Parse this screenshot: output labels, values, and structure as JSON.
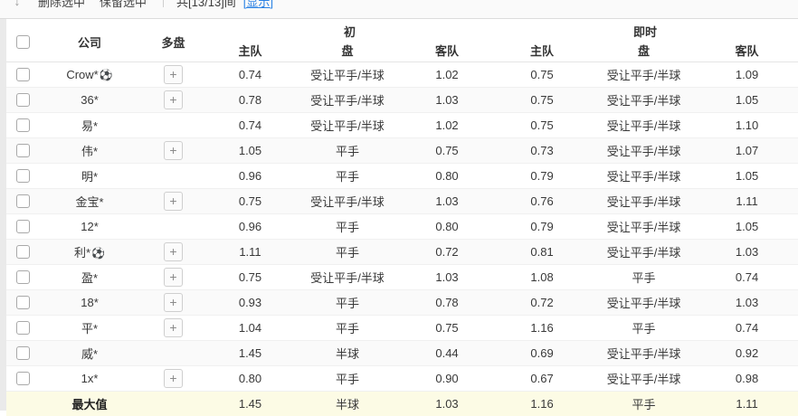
{
  "toolbar": {
    "sort_icon": "↓",
    "delete_selected": "删除选中",
    "keep_selected": "保留选中",
    "count_text": "共[13/13]间",
    "show_link": "[显示]"
  },
  "table": {
    "headers": {
      "company": "公司",
      "multi": "多盘",
      "group_initial": "初",
      "group_live": "即时",
      "home": "主队",
      "handicap": "盘",
      "away": "客队"
    },
    "rows": [
      {
        "name": "Crow*",
        "ball": true,
        "plus": true,
        "init": {
          "home": "0.74",
          "handicap": "受让平手/半球",
          "away": "1.02"
        },
        "live": {
          "home": "0.75",
          "handicap": "受让平手/半球",
          "away": "1.09"
        }
      },
      {
        "name": "36*",
        "ball": false,
        "plus": true,
        "init": {
          "home": "0.78",
          "handicap": "受让平手/半球",
          "away": "1.03"
        },
        "live": {
          "home": "0.75",
          "handicap": "受让平手/半球",
          "away": "1.05"
        }
      },
      {
        "name": "易*",
        "ball": false,
        "plus": false,
        "init": {
          "home": "0.74",
          "handicap": "受让平手/半球",
          "away": "1.02"
        },
        "live": {
          "home": "0.75",
          "handicap": "受让平手/半球",
          "away": "1.10"
        }
      },
      {
        "name": "伟*",
        "ball": false,
        "plus": true,
        "init": {
          "home": "1.05",
          "handicap": "平手",
          "away": "0.75"
        },
        "live": {
          "home": "0.73",
          "handicap": "受让平手/半球",
          "away": "1.07"
        }
      },
      {
        "name": "明*",
        "ball": false,
        "plus": false,
        "init": {
          "home": "0.96",
          "handicap": "平手",
          "away": "0.80"
        },
        "live": {
          "home": "0.79",
          "handicap": "受让平手/半球",
          "away": "1.05"
        }
      },
      {
        "name": "金宝*",
        "ball": false,
        "plus": true,
        "init": {
          "home": "0.75",
          "handicap": "受让平手/半球",
          "away": "1.03"
        },
        "live": {
          "home": "0.76",
          "handicap": "受让平手/半球",
          "away": "1.11"
        }
      },
      {
        "name": "12*",
        "ball": false,
        "plus": false,
        "init": {
          "home": "0.96",
          "handicap": "平手",
          "away": "0.80"
        },
        "live": {
          "home": "0.79",
          "handicap": "受让平手/半球",
          "away": "1.05"
        }
      },
      {
        "name": "利*",
        "ball": true,
        "plus": true,
        "init": {
          "home": "1.11",
          "handicap": "平手",
          "away": "0.72"
        },
        "live": {
          "home": "0.81",
          "handicap": "受让平手/半球",
          "away": "1.03"
        }
      },
      {
        "name": "盈*",
        "ball": false,
        "plus": true,
        "init": {
          "home": "0.75",
          "handicap": "受让平手/半球",
          "away": "1.03"
        },
        "live": {
          "home": "1.08",
          "handicap": "平手",
          "away": "0.74"
        }
      },
      {
        "name": "18*",
        "ball": false,
        "plus": true,
        "init": {
          "home": "0.93",
          "handicap": "平手",
          "away": "0.78"
        },
        "live": {
          "home": "0.72",
          "handicap": "受让平手/半球",
          "away": "1.03"
        }
      },
      {
        "name": "平*",
        "ball": false,
        "plus": true,
        "init": {
          "home": "1.04",
          "handicap": "平手",
          "away": "0.75"
        },
        "live": {
          "home": "1.16",
          "handicap": "平手",
          "away": "0.74"
        }
      },
      {
        "name": "威*",
        "ball": false,
        "plus": false,
        "init": {
          "home": "1.45",
          "handicap": "半球",
          "away": "0.44"
        },
        "live": {
          "home": "0.69",
          "handicap": "受让平手/半球",
          "away": "0.92"
        }
      },
      {
        "name": "1x*",
        "ball": false,
        "plus": true,
        "init": {
          "home": "0.80",
          "handicap": "平手",
          "away": "0.90"
        },
        "live": {
          "home": "0.67",
          "handicap": "受让平手/半球",
          "away": "0.98"
        }
      }
    ],
    "footer": {
      "label": "最大值",
      "init": {
        "home": "1.45",
        "handicap": "半球",
        "away": "1.03"
      },
      "live": {
        "home": "1.16",
        "handicap": "平手",
        "away": "1.11"
      }
    }
  },
  "icons": {
    "soccer_ball": "⚽",
    "plus": "+"
  },
  "colors": {
    "link": "#2a82e4",
    "stripe": "#fafafa",
    "footer_bg": "#fcfbe5"
  }
}
